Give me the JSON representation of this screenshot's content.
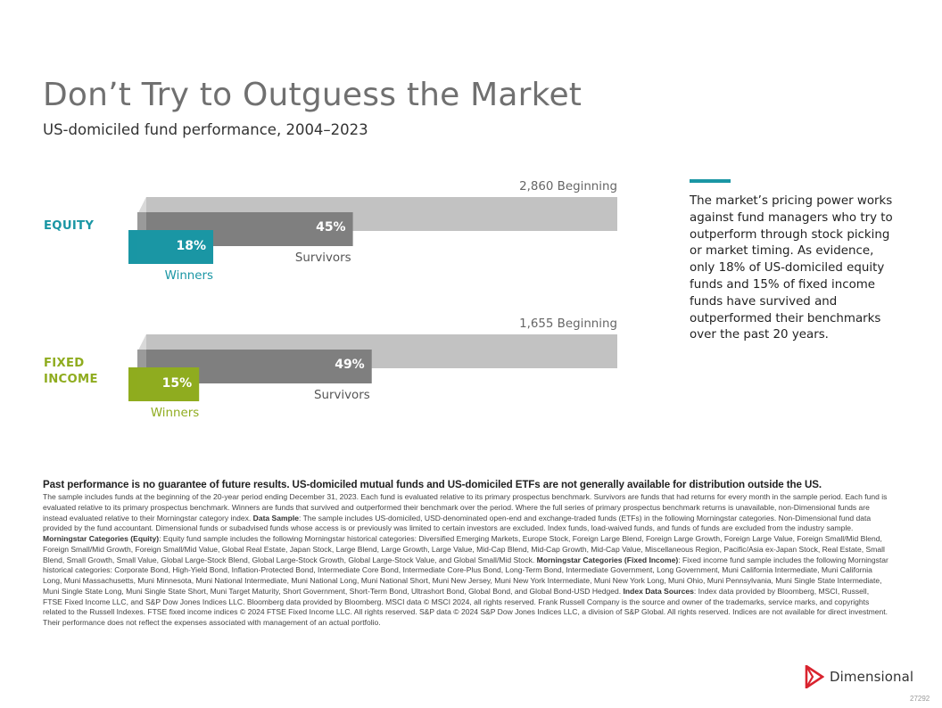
{
  "page": {
    "title": "Don’t Try to Outguess the Market",
    "subtitle": "US-domiciled fund performance, 2004–2023",
    "callout": "The market’s pricing power works against fund managers who try to outperform through stock picking or market timing. As evidence, only 18% of US-domiciled equity funds and 15% of fixed income funds have survived and outperformed their benchmarks over the past 20 years.",
    "logo_text": "Dimensional",
    "doc_number": "27292"
  },
  "chart_data": {
    "type": "bar",
    "categories": [
      "EQUITY",
      "FIXED INCOME"
    ],
    "groups": [
      {
        "category": "EQUITY",
        "beginning": 2860,
        "beginning_label": "2,860 Beginning",
        "survivors_pct": 45,
        "survivors_value_label": "45%",
        "survivors_label": "Survivors",
        "winners_pct": 18,
        "winners_value_label": "18%",
        "winners_label": "Winners",
        "color": "#1a96a4"
      },
      {
        "category": "FIXED INCOME",
        "beginning": 1655,
        "beginning_label": "1,655 Beginning",
        "survivors_pct": 49,
        "survivors_value_label": "49%",
        "survivors_label": "Survivors",
        "winners_pct": 15,
        "winners_value_label": "15%",
        "winners_label": "Winners",
        "color": "#8fac1f"
      }
    ],
    "colors": {
      "beginning": "#c2c2c2",
      "survivors": "#7f7f7f"
    }
  },
  "footnote": {
    "disclaimer": "Past performance is no guarantee of future results. US-domiciled mutual funds and US-domiciled ETFs are not generally available for distribution outside the US.",
    "p1": "The sample includes funds at the beginning of the 20-year period ending December 31, 2023. Each fund is evaluated relative to its primary prospectus benchmark. Survivors are funds that had returns for every month in the sample period. Each fund is evaluated relative to its primary prospectus benchmark. Winners are funds that survived and outperformed their benchmark over the period. Where the full series of primary prospectus benchmark returns is unavailable, non-Dimensional funds are instead evaluated relative to their Morningstar category index.",
    "h_sample": "Data Sample",
    "p_sample": ": The sample includes US-domiciled, USD-denominated open-end and exchange-traded funds (ETFs) in the following Morningstar categories. Non-Dimensional fund data provided by the fund accountant. Dimensional funds or subadvised funds whose access is or previously was limited to certain investors are excluded. Index funds, load-waived funds, and funds of funds are excluded from the industry sample.",
    "h_equity": "Morningstar Categories (Equity)",
    "p_equity": ": Equity fund sample includes the following Morningstar historical categories: Diversified Emerging Markets, Europe Stock, Foreign Large Blend, Foreign Large Growth, Foreign Large Value, Foreign Small/Mid Blend, Foreign Small/Mid Growth, Foreign Small/Mid Value, Global Real Estate, Japan Stock, Large Blend, Large Growth, Large Value, Mid-Cap Blend, Mid-Cap Growth, Mid-Cap Value, Miscellaneous Region, Pacific/Asia ex-Japan Stock, Real Estate, Small Blend, Small Growth, Small Value, Global Large-Stock Blend, Global Large-Stock Growth, Global Large-Stock Value, and Global Small/Mid Stock.",
    "h_fixed": "Morningstar Categories (Fixed Income)",
    "p_fixed": ": Fixed income fund sample includes the following Morningstar historical categories: Corporate Bond, High-Yield Bond, Inflation-Protected Bond, Intermediate Core Bond, Intermediate Core-Plus Bond, Long-Term Bond, Intermediate Government, Long Government, Muni California Intermediate, Muni California Long, Muni Massachusetts, Muni Minnesota, Muni National Intermediate, Muni National Long, Muni National Short, Muni New Jersey, Muni New York Intermediate, Muni New York Long, Muni Ohio, Muni Pennsylvania, Muni Single State Intermediate, Muni Single State Long, Muni Single State Short, Muni Target Maturity, Short Government, Short-Term Bond, Ultrashort Bond, Global Bond, and Global Bond-USD Hedged.",
    "h_sources": "Index Data Sources",
    "p_sources": ": Index data provided by Bloomberg, MSCI, Russell, FTSE Fixed Income LLC, and S&P Dow Jones Indices LLC. Bloomberg data provided by Bloomberg. MSCI data © MSCI 2024, all rights reserved. Frank Russell Company is the source and owner of the trademarks, service marks, and copyrights related to the Russell Indexes. FTSE fixed income indices © 2024 FTSE Fixed Income LLC. All rights reserved. S&P data © 2024 S&P Dow Jones Indices LLC, a division of S&P Global. All rights reserved. Indices are not available for direct investment. Their performance does not reflect the expenses associated with management of an actual portfolio."
  }
}
